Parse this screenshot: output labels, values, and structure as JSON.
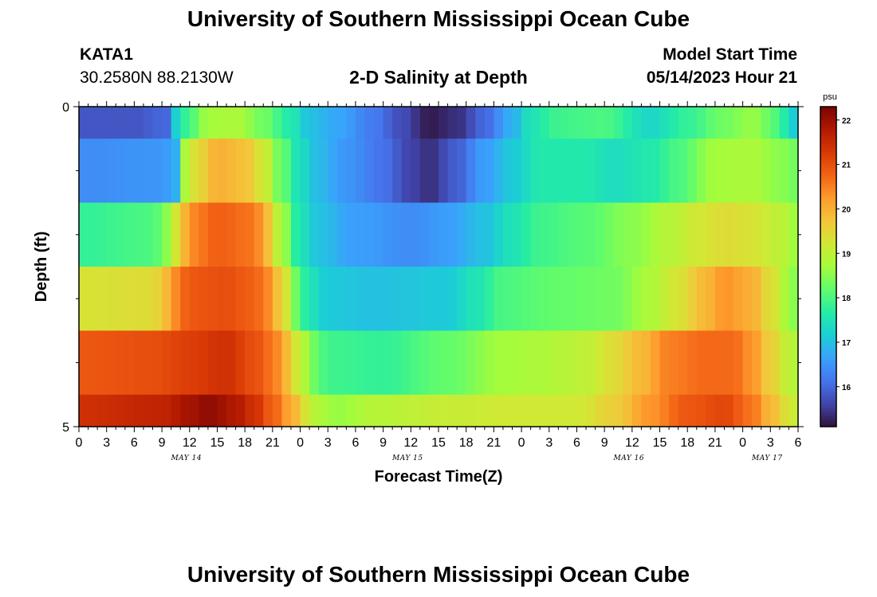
{
  "page": {
    "title_top": "University of Southern Mississippi Ocean Cube",
    "title_bottom": "University of Southern Mississippi Ocean Cube",
    "station_id": "KATA1",
    "station_coords": "30.2580N  88.2130W",
    "plot_title": "2-D Salinity at Depth",
    "model_start_label": "Model Start Time",
    "model_start_value": "05/14/2023 Hour 21"
  },
  "chart_data": {
    "type": "heatmap",
    "title": "2-D Salinity at Depth",
    "xlabel": "Forecast Time(Z)",
    "ylabel": "Depth (ft)",
    "ylim": [
      0,
      5
    ],
    "y_tick_labels": [
      "0",
      "5"
    ],
    "x_range_hours": [
      0,
      78
    ],
    "x_tick_labels": [
      "0",
      "3",
      "6",
      "9",
      "12",
      "15",
      "18",
      "21",
      "0",
      "3",
      "6",
      "9",
      "12",
      "15",
      "18",
      "21",
      "0",
      "3",
      "6",
      "9",
      "12",
      "15",
      "18",
      "21",
      "0",
      "3",
      "6"
    ],
    "date_labels": [
      {
        "text": "MAY 14",
        "hour": 12
      },
      {
        "text": "MAY 15",
        "hour": 36
      },
      {
        "text": "MAY 16",
        "hour": 60
      },
      {
        "text": "MAY 17",
        "hour": 75
      }
    ],
    "colorbar": {
      "unit": "psu",
      "min": 15.1,
      "max": 22.3,
      "tick_labels": [
        "16",
        "17",
        "18",
        "19",
        "20",
        "21",
        "22"
      ],
      "colormap": [
        "#30123b",
        "#4145ab",
        "#4675ed",
        "#39a2fc",
        "#1bcfd4",
        "#24eca6",
        "#61fc6c",
        "#a4fc3b",
        "#d1e834",
        "#f3c63a",
        "#fe9b2d",
        "#f36315",
        "#d93806",
        "#b11901",
        "#7a0403"
      ]
    },
    "depth_bands": [
      {
        "depth_range": [
          0.0,
          0.5
        ],
        "knots": [
          [
            0,
            15.8
          ],
          [
            6,
            15.8
          ],
          [
            9.5,
            16.0
          ],
          [
            10.5,
            17.2
          ],
          [
            12,
            18.0
          ],
          [
            14,
            18.7
          ],
          [
            17,
            18.8
          ],
          [
            20,
            18.3
          ],
          [
            23,
            17.6
          ],
          [
            25,
            17.0
          ],
          [
            28,
            16.7
          ],
          [
            32,
            16.2
          ],
          [
            35,
            15.7
          ],
          [
            38,
            15.2
          ],
          [
            41,
            15.4
          ],
          [
            44,
            16.0
          ],
          [
            47,
            16.8
          ],
          [
            49,
            17.5
          ],
          [
            52,
            17.9
          ],
          [
            57,
            18.0
          ],
          [
            62,
            17.3
          ],
          [
            66,
            17.8
          ],
          [
            70,
            18.3
          ],
          [
            73,
            18.6
          ],
          [
            76,
            18.0
          ],
          [
            77,
            17.3
          ],
          [
            78,
            17.0
          ]
        ]
      },
      {
        "depth_range": [
          0.5,
          1.5
        ],
        "knots": [
          [
            0,
            16.4
          ],
          [
            9,
            16.5
          ],
          [
            10.5,
            16.8
          ],
          [
            11.5,
            18.8
          ],
          [
            13,
            19.5
          ],
          [
            15,
            20.0
          ],
          [
            18,
            19.8
          ],
          [
            20,
            19.2
          ],
          [
            22,
            18.2
          ],
          [
            24,
            17.4
          ],
          [
            26,
            16.9
          ],
          [
            29,
            16.5
          ],
          [
            33,
            16.1
          ],
          [
            36,
            15.6
          ],
          [
            38,
            15.4
          ],
          [
            41,
            15.9
          ],
          [
            44,
            16.6
          ],
          [
            47,
            17.1
          ],
          [
            50,
            17.6
          ],
          [
            55,
            17.6
          ],
          [
            58,
            17.4
          ],
          [
            62,
            17.6
          ],
          [
            65,
            18.0
          ],
          [
            69,
            18.7
          ],
          [
            73,
            18.8
          ],
          [
            76,
            18.5
          ],
          [
            78,
            18.3
          ]
        ]
      },
      {
        "depth_range": [
          1.5,
          2.5
        ],
        "knots": [
          [
            0,
            17.8
          ],
          [
            8,
            18.0
          ],
          [
            9.5,
            18.5
          ],
          [
            11,
            19.5
          ],
          [
            12,
            20.4
          ],
          [
            15,
            20.8
          ],
          [
            19,
            20.6
          ],
          [
            20.5,
            19.8
          ],
          [
            22,
            18.7
          ],
          [
            24,
            17.5
          ],
          [
            26,
            17.0
          ],
          [
            30,
            16.6
          ],
          [
            36,
            16.4
          ],
          [
            40,
            16.6
          ],
          [
            44,
            17.0
          ],
          [
            47,
            17.5
          ],
          [
            50,
            17.9
          ],
          [
            55,
            18.1
          ],
          [
            60,
            18.5
          ],
          [
            64,
            18.9
          ],
          [
            67,
            19.2
          ],
          [
            70,
            19.4
          ],
          [
            73,
            19.3
          ],
          [
            76,
            19.0
          ],
          [
            78,
            18.6
          ]
        ]
      },
      {
        "depth_range": [
          2.5,
          3.5
        ],
        "knots": [
          [
            0,
            19.3
          ],
          [
            8,
            19.4
          ],
          [
            9.5,
            19.9
          ],
          [
            10.5,
            20.4
          ],
          [
            12,
            20.9
          ],
          [
            16,
            21.0
          ],
          [
            19,
            20.8
          ],
          [
            20.5,
            20.4
          ],
          [
            22,
            19.6
          ],
          [
            23.5,
            18.3
          ],
          [
            25,
            17.5
          ],
          [
            27,
            17.1
          ],
          [
            32,
            17.0
          ],
          [
            40,
            17.1
          ],
          [
            43,
            17.5
          ],
          [
            46,
            18.0
          ],
          [
            52,
            18.2
          ],
          [
            58,
            18.3
          ],
          [
            62,
            18.8
          ],
          [
            65,
            19.3
          ],
          [
            68,
            19.9
          ],
          [
            70,
            20.3
          ],
          [
            73,
            20.0
          ],
          [
            75,
            19.4
          ],
          [
            77,
            18.7
          ],
          [
            78,
            18.3
          ]
        ]
      },
      {
        "depth_range": [
          3.5,
          4.5
        ],
        "knots": [
          [
            0,
            20.9
          ],
          [
            8,
            21.0
          ],
          [
            12,
            21.2
          ],
          [
            16,
            21.4
          ],
          [
            19,
            21.0
          ],
          [
            21,
            20.6
          ],
          [
            22.5,
            19.9
          ],
          [
            24,
            19.0
          ],
          [
            25.5,
            18.3
          ],
          [
            27,
            17.9
          ],
          [
            33,
            17.8
          ],
          [
            40,
            18.2
          ],
          [
            46,
            18.7
          ],
          [
            50,
            18.8
          ],
          [
            55,
            19.0
          ],
          [
            58,
            19.4
          ],
          [
            61,
            19.9
          ],
          [
            64,
            20.5
          ],
          [
            68,
            20.7
          ],
          [
            71,
            20.7
          ],
          [
            73,
            20.3
          ],
          [
            75,
            19.6
          ],
          [
            77,
            19.0
          ],
          [
            78,
            18.8
          ]
        ]
      },
      {
        "depth_range": [
          4.5,
          5.0
        ],
        "knots": [
          [
            0,
            21.4
          ],
          [
            9,
            21.6
          ],
          [
            12,
            21.9
          ],
          [
            14,
            22.1
          ],
          [
            17,
            21.8
          ],
          [
            19,
            21.4
          ],
          [
            21,
            20.8
          ],
          [
            23,
            20.1
          ],
          [
            24.5,
            19.3
          ],
          [
            26,
            18.8
          ],
          [
            28,
            18.6
          ],
          [
            32,
            18.9
          ],
          [
            40,
            19.1
          ],
          [
            47,
            19.2
          ],
          [
            54,
            19.2
          ],
          [
            58,
            19.6
          ],
          [
            62,
            20.3
          ],
          [
            66,
            20.9
          ],
          [
            70,
            21.1
          ],
          [
            73,
            20.6
          ],
          [
            75,
            19.9
          ],
          [
            77,
            19.3
          ],
          [
            78,
            19.0
          ]
        ]
      }
    ]
  }
}
